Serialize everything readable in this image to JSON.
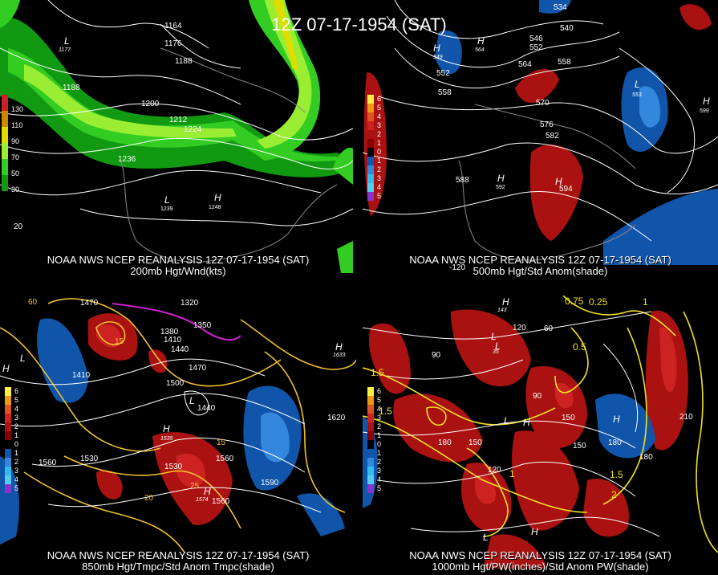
{
  "title": "12Z 07-17-1954 (SAT)",
  "panels": [
    {
      "caption1": "NOAA NWS NCEP REANALYSIS 12Z 07-17-1954 (SAT)",
      "caption2": "200mb Hgt/Wnd(kts)",
      "legend": [
        "130",
        "110",
        "90",
        "70",
        "50",
        "30"
      ],
      "legend_colors": [
        "#cc2222",
        "#cc8800",
        "#dddd00",
        "#99ee33",
        "#33cc22",
        "#119911"
      ],
      "contour_labels": [
        "1164",
        "1176",
        "1188",
        "1188",
        "1200",
        "1212",
        "1224",
        "1236",
        "1239",
        "1248",
        "20"
      ],
      "center_labels": [
        "L",
        "L",
        "H"
      ],
      "center_values": [
        "1177"
      ]
    },
    {
      "caption1": "NOAA NWS NCEP REANALYSIS 12Z 07-17-1954 (SAT)",
      "caption2": "500mb Hgt/Std Anom(shade)",
      "legend": [
        "6",
        "5",
        "4",
        "3",
        "2",
        "1",
        "0",
        "1",
        "2",
        "3",
        "4",
        "5"
      ],
      "legend_colors": [
        "#ffee44",
        "#ee9911",
        "#dd5522",
        "#cc2222",
        "#aa1111",
        "#880000",
        "#000000",
        "#1155aa",
        "#3388dd",
        "#33bbee",
        "#55ccee",
        "#8833cc"
      ],
      "contour_labels": [
        "534",
        "540",
        "546",
        "552",
        "558",
        "564",
        "558",
        "552",
        "570",
        "576",
        "582",
        "588",
        "592",
        "594",
        "-120"
      ],
      "center_labels": [
        "H",
        "H",
        "L",
        "H",
        "H",
        "H"
      ],
      "center_values": [
        "549",
        "564",
        "553",
        "599"
      ]
    },
    {
      "caption1": "NOAA NWS NCEP REANALYSIS 12Z 07-17-1954 (SAT)",
      "caption2": "850mb Hgt/Tmpc/Std Anom Tmpc(shade)",
      "legend": [
        "6",
        "5",
        "4",
        "3",
        "2",
        "1",
        "0",
        "1",
        "2",
        "3",
        "4",
        "5"
      ],
      "legend_colors": [
        "#ffee44",
        "#ee9911",
        "#dd5522",
        "#cc2222",
        "#aa1111",
        "#880000",
        "#000000",
        "#1155aa",
        "#3388dd",
        "#33bbee",
        "#55ccee",
        "#8833cc"
      ],
      "contour_labels": [
        "1470",
        "1320",
        "1380",
        "1350",
        "1410",
        "1440",
        "1470",
        "1500",
        "1410",
        "1440",
        "1530",
        "1560",
        "1530",
        "1560",
        "1590",
        "1620",
        "60",
        "15",
        "15",
        "20",
        "25",
        "1560"
      ],
      "center_labels": [
        "H",
        "L",
        "H",
        "L",
        "H",
        "H"
      ],
      "center_values": [
        "1535",
        "1574",
        "1633"
      ]
    },
    {
      "caption1": "NOAA NWS NCEP REANALYSIS 12Z 07-17-1954 (SAT)",
      "caption2": "1000mb Hgt/PW(inches)/Std Anom PW(shade)",
      "legend": [
        "6",
        "5",
        "4",
        "3",
        "2",
        "1",
        "0",
        "1",
        "2",
        "3",
        "4",
        "5"
      ],
      "legend_colors": [
        "#ffee44",
        "#ee9911",
        "#dd5522",
        "#cc2222",
        "#aa1111",
        "#880000",
        "#000000",
        "#1155aa",
        "#3388dd",
        "#33bbee",
        "#55ccee",
        "#8833cc"
      ],
      "contour_labels": [
        "60",
        "90",
        "120",
        "150",
        "180",
        "150",
        "120",
        "90",
        "180",
        "210",
        "180",
        "150",
        "0.25",
        "0.5",
        "1",
        "1.5",
        "1.5",
        "1",
        "1.5",
        "2",
        "0.75"
      ],
      "center_labels": [
        "H",
        "L",
        "L",
        "H",
        "L",
        "H",
        "L",
        "H"
      ],
      "center_values": [
        "35",
        "143"
      ]
    }
  ]
}
